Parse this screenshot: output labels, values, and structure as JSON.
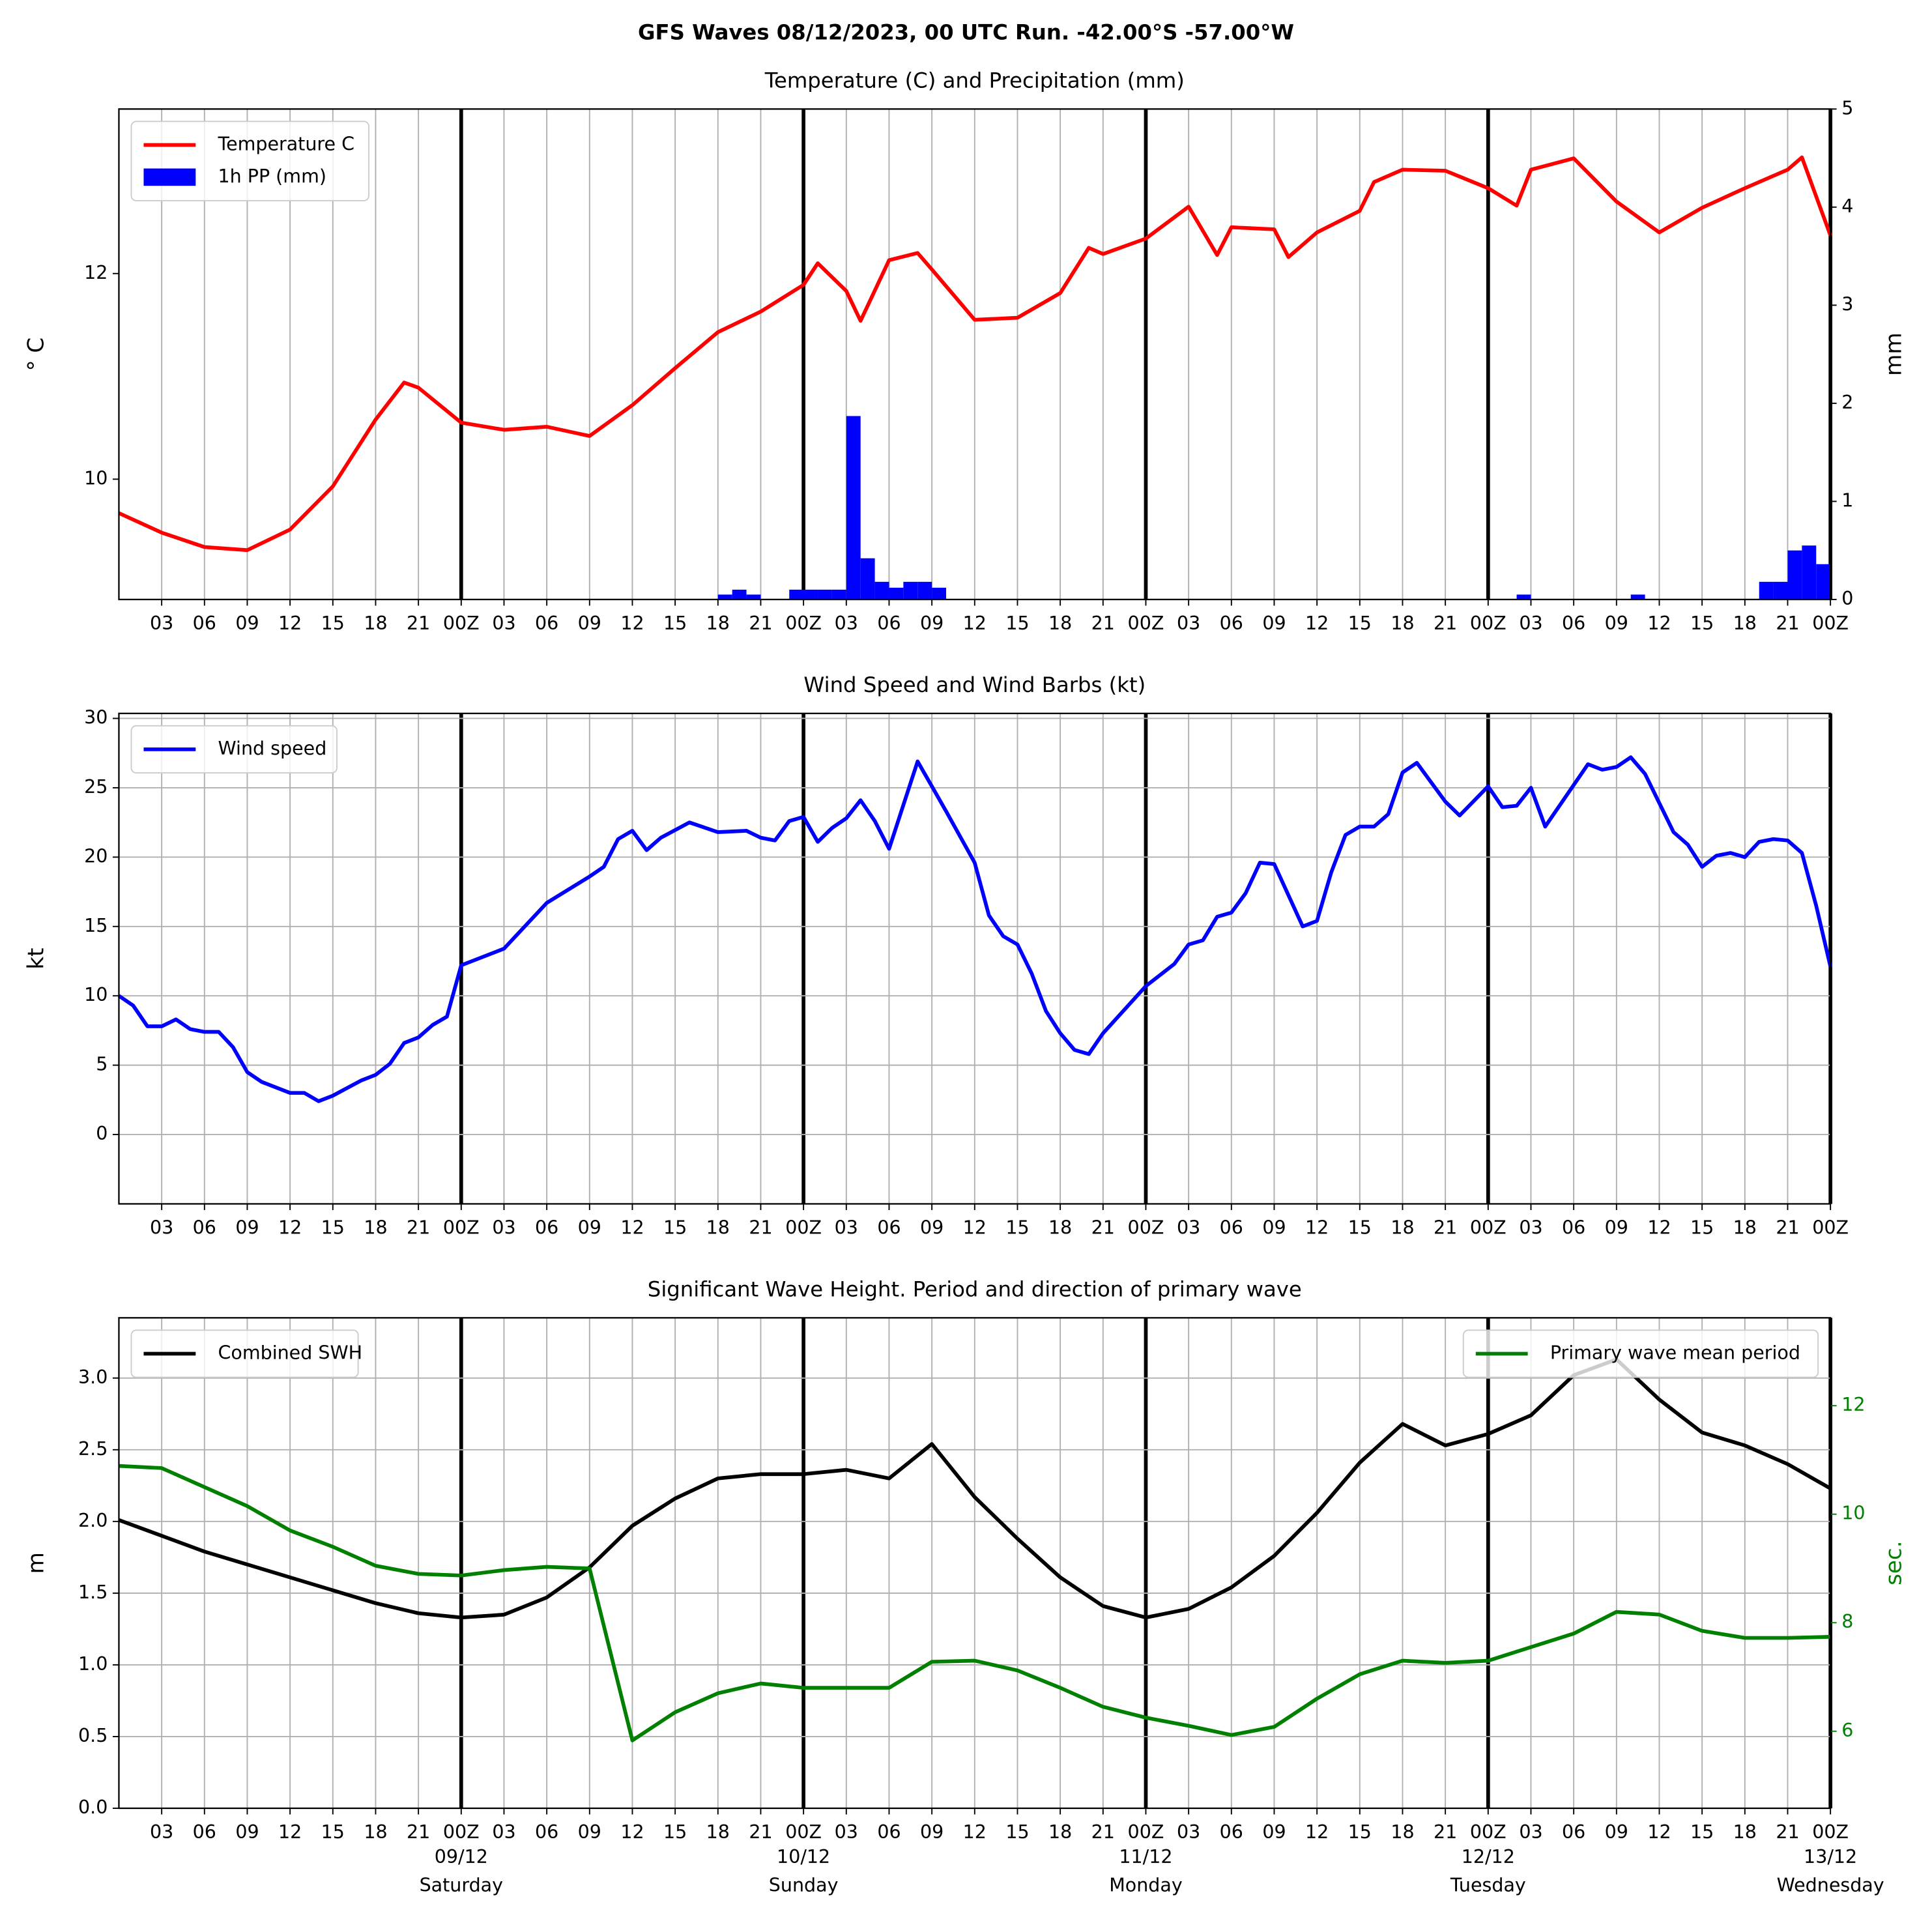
{
  "title": "GFS Waves 08/12/2023, 00 UTC Run. -42.00°S -57.00°W",
  "chart_data": [
    {
      "type": "line",
      "title": "Temperature (C) and Precipitation (mm)",
      "ylabel": "$^\\circ$C",
      "y2label": "mm",
      "xlim": [
        0,
        120
      ],
      "xticks": [
        {
          "value": 3,
          "label": "03"
        },
        {
          "value": 6,
          "label": "06"
        },
        {
          "value": 9,
          "label": "09"
        },
        12,
        15,
        18,
        21,
        {
          "value": 24,
          "label": "00Z"
        },
        {
          "value": 27,
          "label": "03"
        },
        {
          "value": 30,
          "label": "06"
        },
        {
          "value": 33,
          "label": "09"
        },
        {
          "value": 36,
          "label": "12"
        },
        {
          "value": 39,
          "label": "15"
        },
        {
          "value": 42,
          "label": "18"
        },
        {
          "value": 45,
          "label": "21"
        },
        {
          "value": 48,
          "label": "00Z"
        },
        {
          "value": 51,
          "label": "03"
        },
        {
          "value": 54,
          "label": "06"
        },
        {
          "value": 57,
          "label": "09"
        },
        {
          "value": 60,
          "label": "12"
        },
        {
          "value": 63,
          "label": "15"
        },
        {
          "value": 66,
          "label": "18"
        },
        {
          "value": 69,
          "label": "21"
        },
        {
          "value": 72,
          "label": "00Z"
        },
        {
          "value": 75,
          "label": "03"
        },
        {
          "value": 78,
          "label": "06"
        },
        {
          "value": 81,
          "label": "09"
        },
        {
          "value": 84,
          "label": "12"
        },
        {
          "value": 87,
          "label": "15"
        },
        {
          "value": 90,
          "label": "18"
        },
        {
          "value": 93,
          "label": "21"
        },
        {
          "value": 96,
          "label": "00Z"
        },
        {
          "value": 99,
          "label": "03"
        },
        {
          "value": 102,
          "label": "06"
        },
        {
          "value": 105,
          "label": "09"
        },
        {
          "value": 108,
          "label": "12"
        },
        {
          "value": 111,
          "label": "15"
        },
        {
          "value": 114,
          "label": "18"
        },
        {
          "value": 117,
          "label": "21"
        },
        {
          "value": 120,
          "label": "00Z"
        }
      ],
      "major_xticks": [
        24,
        48,
        72,
        96,
        120
      ],
      "ylim": [
        8.83,
        13.6
      ],
      "yticks": [
        10,
        12
      ],
      "y2lim": [
        0,
        5
      ],
      "y2ticks": [
        0,
        1,
        2,
        3,
        4,
        5
      ],
      "grid": "x",
      "series": [
        {
          "name": "Temperature C",
          "color": "#ff0000",
          "legend": "upper left",
          "x": [
            0,
            3,
            6,
            9,
            12,
            15,
            18,
            20,
            21,
            24,
            27,
            30,
            33,
            36,
            39,
            42,
            45,
            48,
            49,
            51,
            52,
            54,
            56,
            57,
            60,
            63,
            66,
            68,
            69,
            72,
            75,
            77,
            78,
            81,
            82,
            84,
            87,
            88,
            90,
            93,
            96,
            98,
            99,
            102,
            105,
            108,
            111,
            114,
            117,
            118,
            120
          ],
          "values": [
            9.67,
            9.48,
            9.34,
            9.31,
            9.51,
            9.93,
            10.58,
            10.94,
            10.89,
            10.55,
            10.48,
            10.51,
            10.42,
            10.72,
            11.08,
            11.43,
            11.63,
            11.89,
            12.1,
            11.83,
            11.54,
            12.13,
            12.2,
            12.04,
            11.55,
            11.57,
            11.81,
            12.25,
            12.19,
            12.34,
            12.65,
            12.18,
            12.45,
            12.43,
            12.16,
            12.4,
            12.61,
            12.89,
            13.01,
            13.0,
            12.83,
            12.66,
            13.01,
            13.12,
            12.7,
            12.4,
            12.64,
            12.83,
            13.01,
            13.13,
            12.37
          ]
        },
        {
          "name": "1h PP (mm)",
          "type": "bar",
          "axis": "y2",
          "color": "#0000ff",
          "legend": "upper left",
          "x": [
            42,
            43,
            44,
            47,
            48,
            49,
            50,
            51,
            52,
            53,
            54,
            55,
            56,
            57,
            98,
            106,
            115,
            116,
            117,
            118,
            119
          ],
          "values": [
            0.05,
            0.1,
            0.05,
            0.1,
            0.1,
            0.1,
            0.1,
            1.87,
            0.42,
            0.18,
            0.12,
            0.18,
            0.18,
            0.12,
            0.05,
            0.05,
            0.18,
            0.18,
            0.5,
            0.55,
            0.36
          ]
        }
      ]
    },
    {
      "type": "line",
      "title": "Wind Speed and Wind Barbs (kt)",
      "ylabel": "kt",
      "xlim": [
        0,
        120
      ],
      "xticks": [
        {
          "value": 3,
          "label": "03"
        },
        {
          "value": 6,
          "label": "06"
        },
        {
          "value": 9,
          "label": "09"
        },
        12,
        15,
        18,
        21,
        {
          "value": 24,
          "label": "00Z"
        },
        {
          "value": 27,
          "label": "03"
        },
        {
          "value": 30,
          "label": "06"
        },
        {
          "value": 33,
          "label": "09"
        },
        {
          "value": 36,
          "label": "12"
        },
        {
          "value": 39,
          "label": "15"
        },
        {
          "value": 42,
          "label": "18"
        },
        {
          "value": 45,
          "label": "21"
        },
        {
          "value": 48,
          "label": "00Z"
        },
        {
          "value": 51,
          "label": "03"
        },
        {
          "value": 54,
          "label": "06"
        },
        {
          "value": 57,
          "label": "09"
        },
        {
          "value": 60,
          "label": "12"
        },
        {
          "value": 63,
          "label": "15"
        },
        {
          "value": 66,
          "label": "18"
        },
        {
          "value": 69,
          "label": "21"
        },
        {
          "value": 72,
          "label": "00Z"
        },
        {
          "value": 75,
          "label": "03"
        },
        {
          "value": 78,
          "label": "06"
        },
        {
          "value": 81,
          "label": "09"
        },
        {
          "value": 84,
          "label": "12"
        },
        {
          "value": 87,
          "label": "15"
        },
        {
          "value": 90,
          "label": "18"
        },
        {
          "value": 93,
          "label": "21"
        },
        {
          "value": 96,
          "label": "00Z"
        },
        {
          "value": 99,
          "label": "03"
        },
        {
          "value": 102,
          "label": "06"
        },
        {
          "value": 105,
          "label": "09"
        },
        {
          "value": 108,
          "label": "12"
        },
        {
          "value": 111,
          "label": "15"
        },
        {
          "value": 114,
          "label": "18"
        },
        {
          "value": 117,
          "label": "21"
        },
        {
          "value": 120,
          "label": "00Z"
        }
      ],
      "major_xticks": [
        24,
        48,
        72,
        96,
        120
      ],
      "ylim": [
        -5,
        30.36
      ],
      "yticks": [
        0,
        5,
        10,
        15,
        20,
        25,
        30
      ],
      "grid": "both",
      "series": [
        {
          "name": "Wind speed",
          "color": "#0000ff",
          "legend": "upper left",
          "x": [
            0,
            1,
            2,
            3,
            4,
            5,
            6,
            7,
            8,
            9,
            10,
            12,
            13,
            14,
            15,
            17,
            18,
            19,
            20,
            21,
            22,
            23,
            24,
            27,
            30,
            33,
            34,
            35,
            36,
            37,
            38,
            40,
            42,
            44,
            45,
            46,
            47,
            48,
            49,
            50,
            51,
            52,
            53,
            54,
            56,
            58,
            60,
            61,
            62,
            63,
            64,
            65,
            66,
            67,
            68,
            69,
            72,
            74,
            75,
            76,
            77,
            78,
            79,
            80,
            81,
            83,
            84,
            85,
            86,
            87,
            88,
            89,
            90,
            91,
            92,
            93,
            94,
            96,
            97,
            98,
            99,
            100,
            103,
            104,
            105,
            106,
            107,
            109,
            110,
            111,
            112,
            113,
            114,
            115,
            116,
            117,
            118,
            119,
            120
          ],
          "values": [
            10.0,
            9.3,
            7.8,
            7.8,
            8.3,
            7.6,
            7.4,
            7.4,
            6.3,
            4.5,
            3.8,
            3.0,
            3.0,
            2.4,
            2.8,
            3.9,
            4.3,
            5.1,
            6.6,
            7.0,
            7.9,
            8.5,
            12.2,
            13.4,
            16.7,
            18.6,
            19.3,
            21.3,
            21.9,
            20.5,
            21.4,
            22.5,
            21.8,
            21.9,
            21.4,
            21.2,
            22.6,
            22.9,
            21.1,
            22.1,
            22.8,
            24.1,
            22.6,
            20.6,
            26.9,
            23.3,
            19.6,
            15.8,
            14.3,
            13.7,
            11.6,
            8.9,
            7.3,
            6.1,
            5.8,
            7.3,
            10.7,
            12.3,
            13.7,
            14.0,
            15.7,
            16.0,
            17.4,
            19.6,
            19.5,
            15.0,
            15.4,
            18.9,
            21.6,
            22.2,
            22.2,
            23.1,
            26.1,
            26.8,
            25.4,
            24.0,
            23.0,
            25.1,
            23.6,
            23.7,
            25.0,
            22.2,
            26.7,
            26.3,
            26.5,
            27.2,
            26.0,
            21.8,
            20.9,
            19.3,
            20.1,
            20.3,
            20.0,
            21.1,
            21.3,
            21.2,
            20.3,
            16.5,
            12.1
          ]
        }
      ]
    },
    {
      "type": "line",
      "title": "Significant Wave Height. Period and direction of primary wave",
      "ylabel": "m",
      "y2label": "sec.",
      "y2color": "#008000",
      "xlim": [
        0,
        120
      ],
      "xticks": [
        {
          "value": 3,
          "label": "03"
        },
        {
          "value": 6,
          "label": "06"
        },
        {
          "value": 9,
          "label": "09"
        },
        12,
        15,
        18,
        21,
        {
          "value": 24,
          "label": "00Z"
        },
        {
          "value": 27,
          "label": "03"
        },
        {
          "value": 30,
          "label": "06"
        },
        {
          "value": 33,
          "label": "09"
        },
        {
          "value": 36,
          "label": "12"
        },
        {
          "value": 39,
          "label": "15"
        },
        {
          "value": 42,
          "label": "18"
        },
        {
          "value": 45,
          "label": "21"
        },
        {
          "value": 48,
          "label": "00Z"
        },
        {
          "value": 51,
          "label": "03"
        },
        {
          "value": 54,
          "label": "06"
        },
        {
          "value": 57,
          "label": "09"
        },
        {
          "value": 60,
          "label": "12"
        },
        {
          "value": 63,
          "label": "15"
        },
        {
          "value": 66,
          "label": "18"
        },
        {
          "value": 69,
          "label": "21"
        },
        {
          "value": 72,
          "label": "00Z"
        },
        {
          "value": 75,
          "label": "03"
        },
        {
          "value": 78,
          "label": "06"
        },
        {
          "value": 81,
          "label": "09"
        },
        {
          "value": 84,
          "label": "12"
        },
        {
          "value": 87,
          "label": "15"
        },
        {
          "value": 90,
          "label": "18"
        },
        {
          "value": 93,
          "label": "21"
        },
        {
          "value": 96,
          "label": "00Z"
        },
        {
          "value": 99,
          "label": "03"
        },
        {
          "value": 102,
          "label": "06"
        },
        {
          "value": 105,
          "label": "09"
        },
        {
          "value": 108,
          "label": "12"
        },
        {
          "value": 111,
          "label": "15"
        },
        {
          "value": 114,
          "label": "18"
        },
        {
          "value": 117,
          "label": "21"
        },
        {
          "value": 120,
          "label": "00Z"
        }
      ],
      "major_xticks": [
        24,
        48,
        72,
        96,
        120
      ],
      "date_labels": [
        {
          "value": 24,
          "label": "09/12",
          "day": "Saturday"
        },
        {
          "value": 48,
          "label": "10/12",
          "day": "Sunday"
        },
        {
          "value": 72,
          "label": "11/12",
          "day": "Monday"
        },
        {
          "value": 96,
          "label": "12/12",
          "day": "Tuesday"
        },
        {
          "value": 120,
          "label": "13/12",
          "day": "Wednesday"
        }
      ],
      "ylim": [
        0,
        3.42
      ],
      "yticks": [
        {
          "value": 0,
          "label": "0.0"
        },
        0.5,
        {
          "value": 1,
          "label": "1.0"
        },
        1.5,
        {
          "value": 2,
          "label": "2.0"
        },
        2.5,
        {
          "value": 3,
          "label": "3.0"
        }
      ],
      "y2lim": [
        4.58,
        13.62
      ],
      "y2ticks": [
        6,
        8,
        10,
        12
      ],
      "grid": "both",
      "series": [
        {
          "name": "Combined SWH",
          "color": "#000000",
          "legend": "upper left",
          "x": [
            0,
            3,
            6,
            9,
            12,
            15,
            18,
            21,
            24,
            27,
            30,
            33,
            36,
            39,
            42,
            45,
            48,
            51,
            54,
            57,
            60,
            63,
            66,
            69,
            72,
            75,
            78,
            81,
            84,
            87,
            90,
            93,
            96,
            99,
            102,
            105,
            108,
            111,
            114,
            117,
            120
          ],
          "values": [
            2.01,
            1.9,
            1.79,
            1.7,
            1.61,
            1.52,
            1.43,
            1.36,
            1.33,
            1.35,
            1.47,
            1.68,
            1.97,
            2.16,
            2.3,
            2.33,
            2.33,
            2.36,
            2.3,
            2.54,
            2.17,
            1.88,
            1.61,
            1.41,
            1.33,
            1.39,
            1.54,
            1.76,
            2.06,
            2.41,
            2.68,
            2.53,
            2.61,
            2.74,
            3.02,
            3.13,
            2.85,
            2.62,
            2.53,
            2.4,
            2.23
          ]
        },
        {
          "name": "Primary wave mean period",
          "color": "#008000",
          "axis": "y2",
          "legend": "upper right",
          "x": [
            0,
            3,
            6,
            9,
            12,
            15,
            18,
            21,
            24,
            27,
            30,
            33,
            36,
            39,
            42,
            45,
            48,
            51,
            54,
            57,
            60,
            63,
            66,
            69,
            72,
            75,
            78,
            81,
            84,
            87,
            90,
            93,
            96,
            99,
            102,
            105,
            108,
            111,
            114,
            117,
            120
          ],
          "values": [
            10.89,
            10.85,
            10.5,
            10.15,
            9.7,
            9.4,
            9.05,
            8.9,
            8.87,
            8.97,
            9.03,
            9.0,
            5.83,
            6.35,
            6.7,
            6.88,
            6.8,
            6.8,
            6.8,
            7.28,
            7.3,
            7.12,
            6.8,
            6.45,
            6.25,
            6.1,
            5.93,
            6.08,
            6.6,
            7.05,
            7.3,
            7.26,
            7.3,
            7.55,
            7.8,
            8.2,
            8.15,
            7.85,
            7.72,
            7.72,
            7.74
          ]
        }
      ]
    }
  ]
}
